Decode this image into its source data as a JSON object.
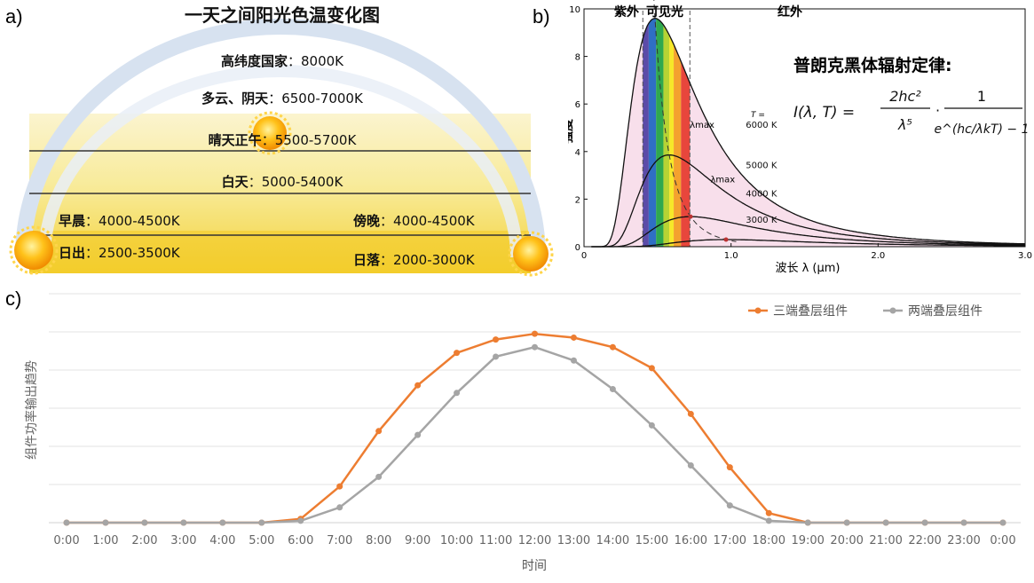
{
  "panel_labels": {
    "a": "a)",
    "b": "b)",
    "c": "c)"
  },
  "panel_a": {
    "title": "一天之间阳光色温变化图",
    "rows": [
      {
        "name": "高纬度国家",
        "value": "8000K"
      },
      {
        "name": "多云、阴天",
        "value": "6500-7000K"
      },
      {
        "name": "晴天正午",
        "value": "5500-5700K"
      },
      {
        "name": "白天",
        "value": "5000-5400K"
      },
      {
        "name": "早晨",
        "value": "4000-4500K"
      },
      {
        "name": "傍晚",
        "value": "4000-4500K"
      },
      {
        "name": "日出",
        "value": "2500-3500K"
      },
      {
        "name": "日落",
        "value": "2000-3000K"
      }
    ],
    "separator": "："
  },
  "panel_b": {
    "region_labels": {
      "uv": "紫外",
      "visible": "可见光",
      "ir": "红外"
    },
    "formula_title": "普朗克黑体辐射定律:",
    "formula_lhs": "I(λ, T) =",
    "formula_num1": "2hc²",
    "formula_den1": "λ⁵",
    "formula_dot": "·",
    "formula_num2": "1",
    "formula_den2": "e^(hc/λkT) − 1",
    "ylabel": "强度",
    "xlabel": "波长 λ (μm)",
    "t_label": "T =",
    "lambda_max": "λmax",
    "series_labels": [
      "6000 K",
      "5000 K",
      "4000 K",
      "3000 K"
    ],
    "y_ticks": [
      "0",
      "2",
      "4",
      "6",
      "8",
      "10"
    ],
    "x_ticks": [
      "0",
      "1.0",
      "2.0",
      "3.0"
    ]
  },
  "chart_data": {
    "type": "line",
    "categories": [
      "0:00",
      "1:00",
      "2:00",
      "3:00",
      "4:00",
      "5:00",
      "6:00",
      "7:00",
      "8:00",
      "9:00",
      "10:00",
      "11:00",
      "12:00",
      "13:00",
      "14:00",
      "15:00",
      "16:00",
      "17:00",
      "18:00",
      "19:00",
      "20:00",
      "21:00",
      "22:00",
      "23:00",
      "0:00"
    ],
    "series": [
      {
        "name": "三端叠层组件",
        "color": "#ED7D31",
        "values": [
          0,
          0,
          0,
          0,
          0,
          0,
          2,
          19,
          48,
          72,
          89,
          96,
          99,
          97,
          92,
          81,
          57,
          29,
          5,
          0,
          0,
          0,
          0,
          0,
          0
        ]
      },
      {
        "name": "两端叠层组件",
        "color": "#A5A5A5",
        "values": [
          0,
          0,
          0,
          0,
          0,
          0,
          1,
          8,
          24,
          46,
          68,
          87,
          92,
          85,
          70,
          51,
          30,
          9,
          1,
          0,
          0,
          0,
          0,
          0,
          0
        ]
      }
    ],
    "ylim": [
      0,
      100
    ],
    "xlabel": "时间",
    "ylabel": "组件功率输出趋势",
    "legend": "top-right",
    "grid": true
  }
}
